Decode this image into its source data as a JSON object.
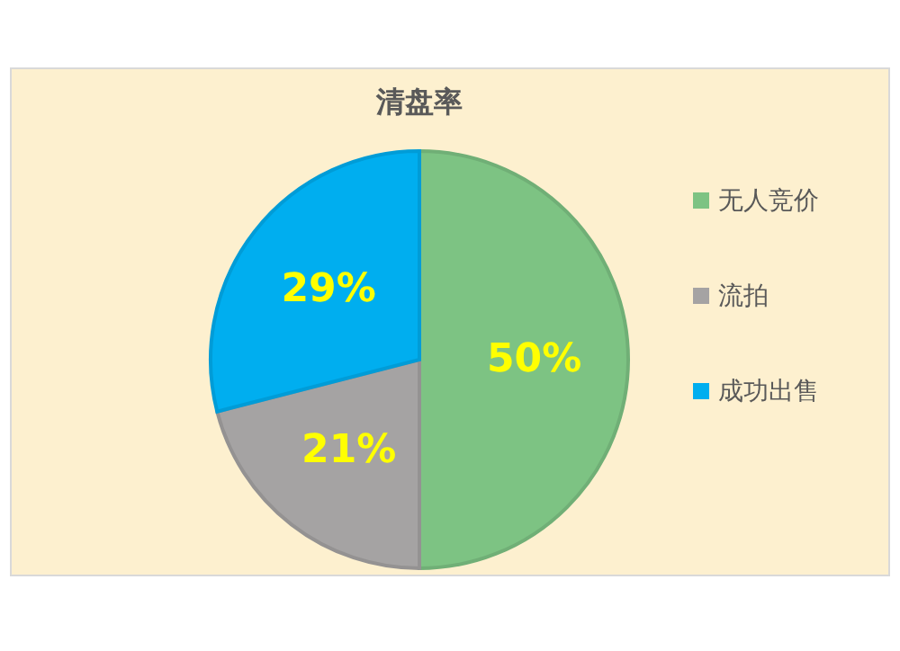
{
  "chart_data": {
    "type": "pie",
    "title": "清盘率",
    "categories": [
      "无人竞价",
      "流拍",
      "成功出售"
    ],
    "values": [
      50,
      21,
      29
    ],
    "colors": [
      "#7dc383",
      "#a5a3a3",
      "#00aeef"
    ],
    "value_labels": [
      "50%",
      "21%",
      "29%"
    ],
    "legend": "right"
  }
}
